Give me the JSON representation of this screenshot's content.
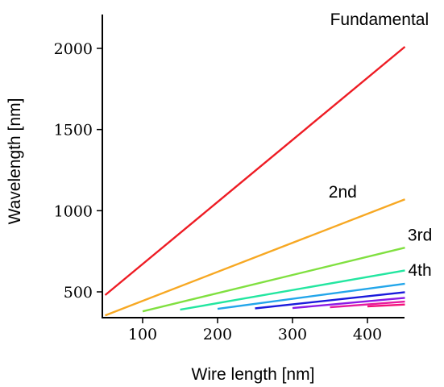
{
  "chart_data": {
    "type": "line",
    "xlabel": "Wire length [nm]",
    "ylabel": "Wavelength [nm]",
    "xlim": [
      50,
      450
    ],
    "ylim": [
      330,
      2200
    ],
    "xticks": [
      100,
      200,
      300,
      400
    ],
    "yticks": [
      500,
      1000,
      1500,
      2000
    ],
    "grid": false,
    "annotations": [
      {
        "text": "Fundamental",
        "x": 416,
        "y": 2180
      },
      {
        "text": "2nd",
        "x": 367,
        "y": 1115
      },
      {
        "text": "3rd",
        "x": 470,
        "y": 850
      },
      {
        "text": "4th",
        "x": 470,
        "y": 635
      }
    ],
    "series": [
      {
        "color": "#ee1c24",
        "x": [
          50,
          450
        ],
        "y": [
          480,
          2010
        ]
      },
      {
        "color": "#f7a823",
        "x": [
          50,
          450
        ],
        "y": [
          355,
          1070
        ]
      },
      {
        "color": "#80e040",
        "x": [
          100,
          450
        ],
        "y": [
          380,
          772
        ]
      },
      {
        "color": "#23e6a0",
        "x": [
          150,
          450
        ],
        "y": [
          390,
          632
        ]
      },
      {
        "color": "#23a6ea",
        "x": [
          200,
          450
        ],
        "y": [
          395,
          550
        ]
      },
      {
        "color": "#1a1adc",
        "x": [
          250,
          450
        ],
        "y": [
          398,
          498
        ]
      },
      {
        "color": "#8a1ae6",
        "x": [
          300,
          450
        ],
        "y": [
          400,
          463
        ]
      },
      {
        "color": "#e61aa0",
        "x": [
          350,
          450
        ],
        "y": [
          405,
          440
        ]
      },
      {
        "color": "#f4107a",
        "x": [
          400,
          450
        ],
        "y": [
          410,
          422
        ]
      }
    ]
  }
}
